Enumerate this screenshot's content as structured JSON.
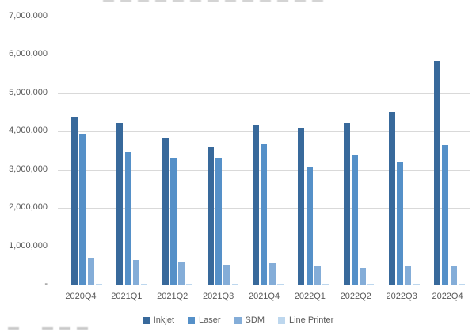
{
  "chart_data": {
    "type": "bar",
    "title": "",
    "xlabel": "",
    "ylabel": "",
    "categories": [
      "2020Q4",
      "2021Q1",
      "2021Q2",
      "2021Q3",
      "2021Q4",
      "2022Q1",
      "2022Q2",
      "2022Q3",
      "2022Q4"
    ],
    "series": [
      {
        "name": "Inkjet",
        "color": "#38699b",
        "values": [
          4380000,
          4210000,
          3840000,
          3590000,
          4170000,
          4090000,
          4210000,
          4500000,
          5840000
        ]
      },
      {
        "name": "Laser",
        "color": "#5590c8",
        "values": [
          3940000,
          3470000,
          3300000,
          3300000,
          3670000,
          3080000,
          3390000,
          3200000,
          3650000
        ]
      },
      {
        "name": "SDM",
        "color": "#84add8",
        "values": [
          690000,
          640000,
          600000,
          520000,
          560000,
          500000,
          430000,
          470000,
          490000
        ]
      },
      {
        "name": "Line Printer",
        "color": "#bdd7ee",
        "values": [
          20000,
          20000,
          20000,
          20000,
          20000,
          20000,
          20000,
          20000,
          20000
        ]
      }
    ],
    "ylim": [
      0,
      7000000
    ],
    "ytick_interval": 1000000,
    "yticks": [
      {
        "value": 0,
        "label": "-"
      },
      {
        "value": 1000000,
        "label": "1,000,000"
      },
      {
        "value": 2000000,
        "label": "2,000,000"
      },
      {
        "value": 3000000,
        "label": "3,000,000"
      },
      {
        "value": 4000000,
        "label": "4,000,000"
      },
      {
        "value": 5000000,
        "label": "5,000,000"
      },
      {
        "value": 6000000,
        "label": "6,000,000"
      },
      {
        "value": 7000000,
        "label": "7,000,000"
      }
    ],
    "grid": true,
    "legend_position": "bottom",
    "colors": {
      "gridline": "#d9d9d9",
      "axis_line": "#d6d6d6",
      "tick_text": "#595959",
      "legend_text": "#595959",
      "background": "#ffffff"
    }
  }
}
